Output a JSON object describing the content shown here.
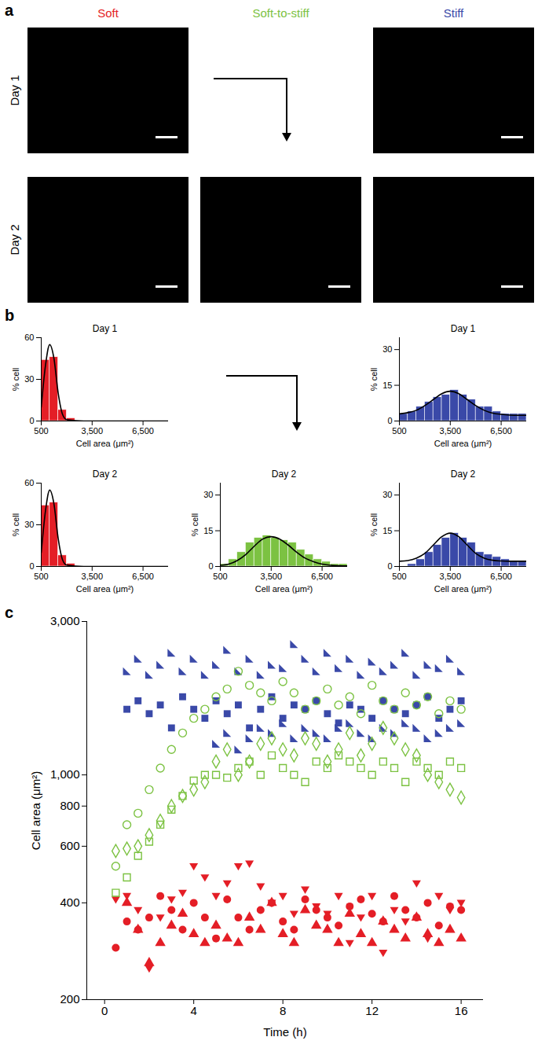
{
  "figure": {
    "panel_labels": [
      "a",
      "b",
      "c"
    ],
    "columns": [
      {
        "label": "Soft",
        "color": "#e41e26"
      },
      {
        "label": "Soft-to-stiff",
        "color": "#7cc242"
      },
      {
        "label": "Stiff",
        "color": "#3a49a8"
      }
    ],
    "rows": [
      "Day 1",
      "Day 2"
    ]
  },
  "chart_data": [
    {
      "type": "histogram",
      "title": "Day 1",
      "bins": [
        500,
        1000,
        1500,
        2000,
        2500,
        3000,
        3500,
        4000,
        4500,
        5000,
        5500,
        6000,
        6500,
        7000,
        7500,
        8000
      ],
      "values": [
        44,
        46,
        8,
        2,
        0,
        0,
        0,
        0,
        0,
        0,
        0,
        0,
        0,
        0,
        0
      ],
      "color": "#e41e26",
      "curve": {
        "color": "#000000",
        "x": [
          500,
          750,
          1000,
          1250,
          1500,
          1750,
          2000,
          3000,
          4000,
          8000
        ],
        "values": [
          10,
          40,
          55,
          45,
          20,
          5,
          1,
          0,
          0,
          0
        ]
      },
      "xlim": [
        500,
        8000
      ],
      "xticks": [
        500,
        {
          "value": 3500,
          "label": "3,500"
        },
        {
          "value": 6500,
          "label": "6,500"
        }
      ],
      "ylim": [
        0,
        60
      ],
      "yticks": [
        0,
        30,
        60
      ],
      "x_label": "Cell area (μm²)",
      "y_label": "% cell"
    },
    {
      "type": "histogram",
      "title": "Day 1",
      "bins": [
        500,
        1000,
        1500,
        2000,
        2500,
        3000,
        3500,
        4000,
        4500,
        5000,
        5500,
        6000,
        6500,
        7000,
        7500,
        8000
      ],
      "values": [
        3,
        4,
        6,
        8,
        10,
        11,
        13,
        11,
        9,
        6,
        6,
        4,
        3,
        3,
        3
      ],
      "color": "#3a49a8",
      "curve": {
        "color": "#000000",
        "x": [
          500,
          1000,
          1500,
          2000,
          2500,
          3000,
          3500,
          4000,
          4500,
          5000,
          5500,
          6000,
          6500,
          7000,
          7500,
          8000
        ],
        "values": [
          3,
          3.5,
          4.5,
          6.5,
          9,
          11.5,
          12.5,
          11.5,
          9,
          6.5,
          4.5,
          3.3,
          2.8,
          2.5,
          2.4,
          2.4
        ]
      },
      "xlim": [
        500,
        8000
      ],
      "xticks": [
        500,
        {
          "value": 3500,
          "label": "3,500"
        },
        {
          "value": 6500,
          "label": "6,500"
        }
      ],
      "ylim": [
        0,
        35
      ],
      "yticks": [
        0,
        15,
        30
      ],
      "x_label": "Cell area (μm²)",
      "y_label": "% cell"
    },
    {
      "type": "histogram",
      "title": "Day 2",
      "bins": [
        500,
        1000,
        1500,
        2000,
        2500,
        3000,
        3500,
        4000,
        4500,
        5000,
        5500,
        6000,
        6500,
        7000,
        7500,
        8000
      ],
      "values": [
        44,
        46,
        8,
        2,
        0,
        0,
        0,
        0,
        0,
        0,
        0,
        0,
        0,
        0,
        0
      ],
      "color": "#e41e26",
      "curve": {
        "color": "#000000",
        "x": [
          500,
          750,
          1000,
          1250,
          1500,
          1750,
          2000,
          3000,
          4000,
          8000
        ],
        "values": [
          10,
          40,
          55,
          45,
          20,
          5,
          1,
          0,
          0,
          0
        ]
      },
      "xlim": [
        500,
        8000
      ],
      "xticks": [
        500,
        {
          "value": 3500,
          "label": "3,500"
        },
        {
          "value": 6500,
          "label": "6,500"
        }
      ],
      "ylim": [
        0,
        60
      ],
      "yticks": [
        0,
        30,
        60
      ],
      "x_label": "Cell area (μm²)",
      "y_label": "% cell"
    },
    {
      "type": "histogram",
      "title": "Day 2",
      "bins": [
        500,
        1000,
        1500,
        2000,
        2500,
        3000,
        3500,
        4000,
        4500,
        5000,
        5500,
        6000,
        6500,
        7000,
        7500,
        8000
      ],
      "values": [
        1,
        3,
        6,
        10,
        12,
        13,
        12,
        11,
        10,
        7,
        5,
        3,
        2,
        1,
        1
      ],
      "color": "#7cc242",
      "curve": {
        "color": "#000000",
        "x": [
          500,
          1000,
          1500,
          2000,
          2500,
          3000,
          3500,
          4000,
          4500,
          5000,
          5500,
          6000,
          6500,
          7000,
          7500,
          8000
        ],
        "values": [
          0.5,
          1,
          2.5,
          5,
          8.5,
          11.5,
          12.5,
          11.5,
          9,
          6,
          3.5,
          2,
          1,
          0.5,
          0.3,
          0.2
        ]
      },
      "xlim": [
        500,
        8000
      ],
      "xticks": [
        500,
        {
          "value": 3500,
          "label": "3,500"
        },
        {
          "value": 6500,
          "label": "6,500"
        }
      ],
      "ylim": [
        0,
        35
      ],
      "yticks": [
        0,
        15,
        30
      ],
      "x_label": "Cell area (μm²)",
      "y_label": "% cell"
    },
    {
      "type": "histogram",
      "title": "Day 2",
      "bins": [
        500,
        1000,
        1500,
        2000,
        2500,
        3000,
        3500,
        4000,
        4500,
        5000,
        5500,
        6000,
        6500,
        7000,
        7500,
        8000
      ],
      "values": [
        0,
        1,
        3,
        6,
        9,
        12,
        14,
        12,
        10,
        6,
        5,
        4,
        3,
        2,
        2
      ],
      "color": "#3a49a8",
      "curve": {
        "color": "#000000",
        "x": [
          500,
          1000,
          1500,
          2000,
          2500,
          3000,
          3500,
          4000,
          4500,
          5000,
          5500,
          6000,
          6500,
          7000,
          7500,
          8000
        ],
        "values": [
          2.2,
          2.5,
          3.5,
          5.5,
          9,
          12.5,
          14,
          12.5,
          9,
          5.5,
          3.5,
          2.6,
          2.3,
          2.2,
          2.2,
          2.2
        ]
      },
      "xlim": [
        500,
        8000
      ],
      "xticks": [
        500,
        {
          "value": 3500,
          "label": "3,500"
        },
        {
          "value": 6500,
          "label": "6,500"
        }
      ],
      "ylim": [
        0,
        35
      ],
      "yticks": [
        0,
        15,
        30
      ],
      "x_label": "Cell area (μm²)",
      "y_label": "% cell"
    },
    {
      "type": "scatter",
      "log": "y",
      "x": [
        0.5,
        1,
        1.5,
        2,
        2.5,
        3,
        3.5,
        4,
        4.5,
        5,
        5.5,
        6,
        6.5,
        7,
        7.5,
        8,
        8.5,
        9,
        9.5,
        10,
        10.5,
        11,
        11.5,
        12,
        12.5,
        13,
        13.5,
        14,
        14.5,
        15,
        15.5,
        16
      ],
      "series": [
        {
          "color": "#e41e26",
          "marker": "circle",
          "values": [
            290,
            350,
            330,
            360,
            420,
            380,
            330,
            400,
            360,
            310,
            410,
            360,
            330,
            380,
            400,
            350,
            330,
            410,
            380,
            360,
            340,
            390,
            410,
            370,
            350,
            420,
            380,
            360,
            400,
            340,
            390,
            380
          ]
        },
        {
          "color": "#e41e26",
          "marker": "triangle",
          "values": [
            null,
            400,
            330,
            260,
            300,
            340,
            370,
            320,
            300,
            340,
            310,
            300,
            360,
            330,
            400,
            320,
            300,
            380,
            340,
            330,
            300,
            370,
            320,
            300,
            350,
            330,
            310,
            360,
            320,
            300,
            330,
            310
          ]
        },
        {
          "color": "#e41e26",
          "marker": "triangle-down",
          "values": [
            410,
            420,
            380,
            250,
            360,
            410,
            430,
            520,
            480,
            420,
            460,
            520,
            530,
            450,
            400,
            420,
            370,
            440,
            390,
            370,
            420,
            300,
            360,
            420,
            280,
            380,
            350,
            460,
            310,
            420,
            380,
            400
          ]
        },
        {
          "color": "#3a49a8",
          "marker": "corner",
          "values": [
            null,
            2100,
            2300,
            2050,
            2200,
            2400,
            2100,
            2300,
            2050,
            2200,
            2450,
            2100,
            2300,
            2050,
            2200,
            2150,
            2550,
            2300,
            2100,
            2400,
            2150,
            2300,
            2050,
            2250,
            2100,
            2200,
            2400,
            2050,
            2200,
            2150,
            2300,
            2100
          ]
        },
        {
          "color": "#3a49a8",
          "marker": "square",
          "values": [
            null,
            1600,
            1700,
            1550,
            1650,
            1400,
            1750,
            1600,
            1500,
            1700,
            1550,
            1650,
            1400,
            1600,
            1750,
            1500,
            1650,
            1600,
            1700,
            1550,
            1450,
            1650,
            1600,
            1500,
            1700,
            1600,
            1550,
            1650,
            1750,
            1500,
            1600,
            1700
          ]
        },
        {
          "color": "#3a49a8",
          "marker": "corner",
          "values": [
            null,
            null,
            null,
            null,
            null,
            null,
            null,
            null,
            null,
            1250,
            1350,
            1200,
            1300,
            1400,
            1350,
            1450,
            1300,
            1400,
            1350,
            1300,
            1400,
            1450,
            1350,
            1300,
            1400,
            1350,
            1450,
            1400,
            1300,
            1350,
            1400,
            1450
          ]
        },
        {
          "color": "#7cc242",
          "marker": "circle-open",
          "values": [
            520,
            700,
            760,
            900,
            1050,
            1200,
            1350,
            1500,
            1600,
            1750,
            1850,
            2100,
            1900,
            1800,
            1700,
            1950,
            1800,
            1600,
            1700,
            1850,
            1650,
            1750,
            1550,
            1900,
            1700,
            1600,
            1800,
            1650,
            1750,
            1550,
            1700,
            1600
          ]
        },
        {
          "color": "#7cc242",
          "marker": "diamond-open",
          "values": [
            580,
            590,
            600,
            650,
            720,
            800,
            860,
            900,
            950,
            1100,
            1200,
            1000,
            1100,
            1250,
            1300,
            1200,
            1150,
            1300,
            1250,
            1100,
            1200,
            1350,
            1150,
            1250,
            1400,
            1300,
            1200,
            1150,
            1000,
            950,
            900,
            850
          ]
        },
        {
          "color": "#7cc242",
          "marker": "square-open",
          "values": [
            430,
            480,
            560,
            620,
            700,
            780,
            860,
            960,
            1000,
            1000,
            980,
            1050,
            1100,
            1000,
            1150,
            1050,
            1000,
            950,
            1100,
            1050,
            1150,
            1100,
            1050,
            1000,
            1100,
            1050,
            950,
            1100,
            1050,
            1000,
            1100,
            1050
          ]
        }
      ],
      "xlim": [
        -0.8,
        17
      ],
      "xticks": [
        0,
        4,
        8,
        12,
        16
      ],
      "ylim": [
        200,
        3000
      ],
      "yticks": [
        200,
        400,
        600,
        800,
        {
          "value": 1000,
          "label": "1,000"
        },
        {
          "value": 3000,
          "label": "3,000"
        }
      ],
      "x_label": "Time (h)",
      "y_label": "Cell area (μm²)"
    }
  ]
}
